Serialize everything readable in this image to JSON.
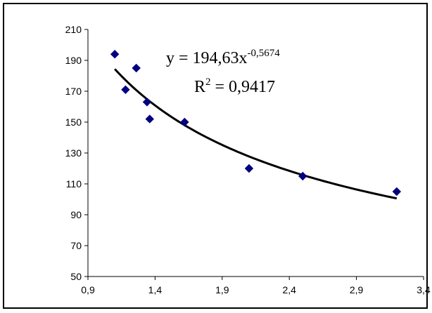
{
  "chart_data": {
    "type": "scatter",
    "x": [
      1.1,
      1.18,
      1.26,
      1.34,
      1.36,
      1.62,
      2.1,
      2.5,
      3.2
    ],
    "y": [
      194,
      171,
      185,
      163,
      152,
      150,
      120,
      115,
      105
    ],
    "marker_color": "#000080",
    "trendline": {
      "type": "power",
      "a": 194.63,
      "b": -0.5674,
      "x_range": [
        1.1,
        3.2
      ],
      "color": "#000000",
      "equation_base": "y = 194,63x",
      "equation_exponent": "-0,5674",
      "r2_base": "R",
      "r2_exponent": "2",
      "r2_value": " = 0,9417"
    },
    "xlim": [
      0.9,
      3.4
    ],
    "ylim": [
      50,
      210
    ],
    "x_ticks": [
      "0,9",
      "1,4",
      "1,9",
      "2,4",
      "2,9",
      "3,4"
    ],
    "y_ticks": [
      "50",
      "70",
      "90",
      "110",
      "130",
      "150",
      "170",
      "190",
      "210"
    ],
    "grid": false,
    "legend": "none"
  }
}
